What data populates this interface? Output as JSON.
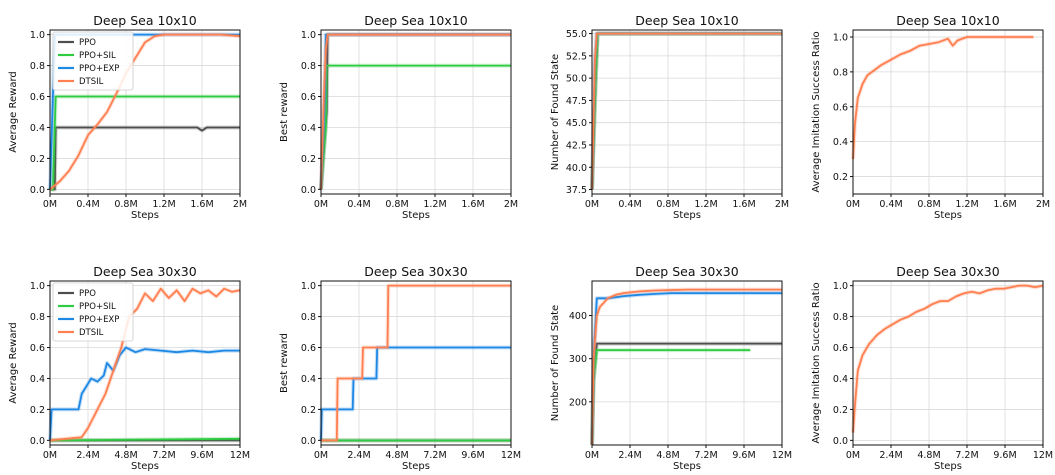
{
  "colors": {
    "PPO": "#4d4d4d",
    "PPO+SIL": "#2ecc40",
    "PPO+EXP": "#1e88e5",
    "DTSIL": "#ff7f50",
    "grid": "#d9d9d9"
  },
  "chart_data": [
    {
      "type": "line",
      "title": "Deep Sea 10x10",
      "xlabel": "Steps",
      "ylabel": "Average Reward",
      "xlim": [
        0,
        2
      ],
      "ylim": [
        -0.03,
        1.03
      ],
      "xticks": [
        0,
        0.4,
        0.8,
        1.2,
        1.6,
        2
      ],
      "xticklabels": [
        "0M",
        "0.4M",
        "0.8M",
        "1.2M",
        "1.6M",
        "2M"
      ],
      "yticks": [
        0,
        0.2,
        0.4,
        0.6,
        0.8,
        1.0
      ],
      "yticklabels": [
        "0.0",
        "0.2",
        "0.4",
        "0.6",
        "0.8",
        "1.0"
      ],
      "grid": true,
      "legend": "upper-left",
      "series": [
        {
          "name": "PPO",
          "x": [
            0,
            0.05,
            0.06,
            1.55,
            1.6,
            1.65,
            2
          ],
          "y": [
            0,
            0,
            0.4,
            0.4,
            0.38,
            0.4,
            0.4
          ]
        },
        {
          "name": "PPO+SIL",
          "x": [
            0,
            0.03,
            0.06,
            2
          ],
          "y": [
            0,
            0,
            0.6,
            0.6
          ]
        },
        {
          "name": "PPO+EXP",
          "x": [
            0,
            0.05,
            0.2,
            2
          ],
          "y": [
            0,
            1.0,
            1.0,
            1.0
          ]
        },
        {
          "name": "DTSIL",
          "x": [
            0,
            0.1,
            0.2,
            0.3,
            0.4,
            0.5,
            0.6,
            0.7,
            0.8,
            0.9,
            1.0,
            1.1,
            1.2,
            1.4,
            1.6,
            1.8,
            2.0
          ],
          "y": [
            0,
            0.05,
            0.12,
            0.22,
            0.35,
            0.42,
            0.5,
            0.62,
            0.75,
            0.85,
            0.95,
            0.99,
            1.0,
            1.0,
            1.0,
            1.0,
            0.99
          ]
        }
      ]
    },
    {
      "type": "line",
      "title": "Deep Sea 10x10",
      "xlabel": "Steps",
      "ylabel": "Best reward",
      "xlim": [
        0,
        2
      ],
      "ylim": [
        -0.03,
        1.03
      ],
      "xticks": [
        0,
        0.4,
        0.8,
        1.2,
        1.6,
        2
      ],
      "xticklabels": [
        "0M",
        "0.4M",
        "0.8M",
        "1.2M",
        "1.6M",
        "2M"
      ],
      "yticks": [
        0,
        0.2,
        0.4,
        0.6,
        0.8,
        1.0
      ],
      "yticklabels": [
        "0.0",
        "0.2",
        "0.4",
        "0.6",
        "0.8",
        "1.0"
      ],
      "grid": true,
      "series": [
        {
          "name": "PPO",
          "x": [
            0,
            0.06,
            0.07,
            2
          ],
          "y": [
            0,
            0.5,
            1.0,
            1.0
          ]
        },
        {
          "name": "PPO+SIL",
          "x": [
            0,
            0.05,
            0.06,
            2
          ],
          "y": [
            0,
            0.4,
            0.8,
            0.8
          ]
        },
        {
          "name": "PPO+EXP",
          "x": [
            0,
            0.04,
            0.05,
            2
          ],
          "y": [
            0,
            0.6,
            1.0,
            1.0
          ]
        },
        {
          "name": "DTSIL",
          "x": [
            0,
            0.03,
            0.05,
            0.07,
            2
          ],
          "y": [
            0,
            0.6,
            0.9,
            1.0,
            1.0
          ]
        }
      ]
    },
    {
      "type": "line",
      "title": "Deep Sea 10x10",
      "xlabel": "Steps",
      "ylabel": "Number of Found State",
      "xlim": [
        0,
        2
      ],
      "ylim": [
        37,
        55.4
      ],
      "xticks": [
        0,
        0.4,
        0.8,
        1.2,
        1.6,
        2
      ],
      "xticklabels": [
        "0M",
        "0.4M",
        "0.8M",
        "1.2M",
        "1.6M",
        "2M"
      ],
      "yticks": [
        37.5,
        40,
        42.5,
        45,
        47.5,
        50,
        52.5,
        55
      ],
      "yticklabels": [
        "37.5",
        "40.0",
        "42.5",
        "45.0",
        "47.5",
        "50.0",
        "52.5",
        "55.0"
      ],
      "grid": true,
      "series": [
        {
          "name": "PPO",
          "x": [
            0,
            0.04,
            0.06,
            2
          ],
          "y": [
            37.5,
            50,
            55,
            55
          ]
        },
        {
          "name": "PPO+SIL",
          "x": [
            0,
            0.04,
            0.06,
            2
          ],
          "y": [
            37.5,
            50,
            55,
            55
          ]
        },
        {
          "name": "PPO+EXP",
          "x": [
            0,
            0.03,
            0.05,
            2
          ],
          "y": [
            37.5,
            52,
            55,
            55
          ]
        },
        {
          "name": "DTSIL",
          "x": [
            0,
            0.03,
            0.05,
            2
          ],
          "y": [
            37.5,
            52,
            55,
            55
          ]
        }
      ]
    },
    {
      "type": "line",
      "title": "Deep Sea 10x10",
      "xlabel": "Steps",
      "ylabel": "Average Imitation Success Ratio",
      "xlim": [
        0,
        2
      ],
      "ylim": [
        0.1,
        1.04
      ],
      "xticks": [
        0,
        0.4,
        0.8,
        1.2,
        1.6,
        2
      ],
      "xticklabels": [
        "0M",
        "0.4M",
        "0.8M",
        "1.2M",
        "1.6M",
        "2M"
      ],
      "yticks": [
        0.2,
        0.4,
        0.6,
        0.8,
        1.0
      ],
      "yticklabels": [
        "0.2",
        "0.4",
        "0.6",
        "0.8",
        "1.0"
      ],
      "grid": true,
      "series": [
        {
          "name": "DTSIL",
          "x": [
            0,
            0.02,
            0.05,
            0.1,
            0.15,
            0.2,
            0.3,
            0.4,
            0.5,
            0.6,
            0.7,
            0.8,
            0.9,
            1.0,
            1.05,
            1.1,
            1.2,
            1.4,
            1.6,
            1.8,
            1.9
          ],
          "y": [
            0.3,
            0.5,
            0.65,
            0.73,
            0.78,
            0.8,
            0.84,
            0.87,
            0.9,
            0.92,
            0.95,
            0.96,
            0.97,
            0.99,
            0.95,
            0.98,
            1.0,
            1.0,
            1.0,
            1.0,
            1.0
          ]
        }
      ]
    },
    {
      "type": "line",
      "title": "Deep Sea 30x30",
      "xlabel": "Steps",
      "ylabel": "Average Reward",
      "xlim": [
        0,
        12
      ],
      "ylim": [
        -0.03,
        1.03
      ],
      "xticks": [
        0,
        2.4,
        4.8,
        7.2,
        9.6,
        12
      ],
      "xticklabels": [
        "0M",
        "2.4M",
        "4.8M",
        "7.2M",
        "9.6M",
        "12M"
      ],
      "yticks": [
        0,
        0.2,
        0.4,
        0.6,
        0.8,
        1.0
      ],
      "yticklabels": [
        "0.0",
        "0.2",
        "0.4",
        "0.6",
        "0.8",
        "1.0"
      ],
      "grid": true,
      "legend": "upper-left",
      "series": [
        {
          "name": "PPO",
          "x": [
            0,
            12
          ],
          "y": [
            0,
            0
          ]
        },
        {
          "name": "PPO+SIL",
          "x": [
            0,
            12
          ],
          "y": [
            0,
            0.01
          ]
        },
        {
          "name": "PPO+EXP",
          "x": [
            0,
            0.1,
            1.8,
            2.0,
            2.6,
            3.0,
            3.4,
            3.6,
            4.0,
            4.4,
            4.8,
            5.4,
            6.0,
            7.0,
            8.0,
            9.0,
            10.0,
            11.0,
            12.0
          ],
          "y": [
            0,
            0.2,
            0.2,
            0.3,
            0.4,
            0.38,
            0.42,
            0.5,
            0.45,
            0.55,
            0.6,
            0.57,
            0.59,
            0.58,
            0.57,
            0.58,
            0.57,
            0.58,
            0.58
          ]
        },
        {
          "name": "DTSIL",
          "x": [
            0,
            1.0,
            2.0,
            2.4,
            3.0,
            3.5,
            4.0,
            4.5,
            5.0,
            5.5,
            6.0,
            6.5,
            7.0,
            7.5,
            8.0,
            8.5,
            9.0,
            9.5,
            10.0,
            10.5,
            11.0,
            11.5,
            12.0
          ],
          "y": [
            0,
            0.01,
            0.02,
            0.08,
            0.2,
            0.3,
            0.45,
            0.6,
            0.8,
            0.85,
            0.95,
            0.9,
            0.98,
            0.92,
            0.97,
            0.9,
            0.98,
            0.95,
            0.97,
            0.93,
            0.98,
            0.96,
            0.97
          ]
        }
      ]
    },
    {
      "type": "line",
      "title": "Deep Sea 30x30",
      "xlabel": "Steps",
      "ylabel": "Best reward",
      "xlim": [
        0,
        12
      ],
      "ylim": [
        -0.03,
        1.03
      ],
      "xticks": [
        0,
        2.4,
        4.8,
        7.2,
        9.6,
        12
      ],
      "xticklabels": [
        "0M",
        "2.4M",
        "4.8M",
        "7.2M",
        "9.6M",
        "12M"
      ],
      "yticks": [
        0,
        0.2,
        0.4,
        0.6,
        0.8,
        1.0
      ],
      "yticklabels": [
        "0.0",
        "0.2",
        "0.4",
        "0.6",
        "0.8",
        "1.0"
      ],
      "grid": true,
      "series": [
        {
          "name": "PPO",
          "x": [
            0,
            12
          ],
          "y": [
            0,
            0
          ]
        },
        {
          "name": "PPO+SIL",
          "x": [
            0,
            12
          ],
          "y": [
            0,
            0
          ]
        },
        {
          "name": "PPO+EXP",
          "x": [
            0,
            0.05,
            2.0,
            2.05,
            3.5,
            3.55,
            4.0,
            4.05,
            12
          ],
          "y": [
            0,
            0.2,
            0.2,
            0.4,
            0.4,
            0.6,
            0.6,
            0.6,
            0.6
          ]
        },
        {
          "name": "DTSIL",
          "x": [
            0,
            1.0,
            1.05,
            2.6,
            2.65,
            4.2,
            4.25,
            12
          ],
          "y": [
            0,
            0,
            0.4,
            0.4,
            0.6,
            0.6,
            1.0,
            1.0
          ]
        }
      ]
    },
    {
      "type": "line",
      "title": "Deep Sea 30x30",
      "xlabel": "Steps",
      "ylabel": "Number of Found State",
      "xlim": [
        0,
        12
      ],
      "ylim": [
        100,
        480
      ],
      "xticks": [
        0,
        2.4,
        4.8,
        7.2,
        9.6,
        12
      ],
      "xticklabels": [
        "0M",
        "2.4M",
        "4.8M",
        "7.2M",
        "9.6M",
        "12M"
      ],
      "yticks": [
        200,
        300,
        400
      ],
      "yticklabels": [
        "200",
        "300",
        "400"
      ],
      "grid": true,
      "series": [
        {
          "name": "PPO",
          "x": [
            0,
            0.1,
            0.3,
            12
          ],
          "y": [
            100,
            250,
            335,
            335
          ]
        },
        {
          "name": "PPO+SIL",
          "x": [
            0,
            0.1,
            0.3,
            10.0
          ],
          "y": [
            100,
            250,
            320,
            320
          ]
        },
        {
          "name": "PPO+EXP",
          "x": [
            0,
            0.1,
            0.3,
            1.0,
            2.0,
            3.0,
            4.0,
            5.0,
            6.0,
            8.0,
            10.0,
            12.0
          ],
          "y": [
            100,
            300,
            440,
            440,
            445,
            448,
            450,
            452,
            452,
            452,
            452,
            452
          ]
        },
        {
          "name": "DTSIL",
          "x": [
            0,
            0.1,
            0.3,
            0.5,
            1.0,
            1.5,
            2.0,
            3.0,
            4.0,
            6.0,
            8.0,
            10.0,
            12.0
          ],
          "y": [
            100,
            300,
            400,
            420,
            440,
            448,
            452,
            456,
            458,
            460,
            460,
            460,
            460
          ]
        }
      ]
    },
    {
      "type": "line",
      "title": "Deep Sea 30x30",
      "xlabel": "Steps",
      "ylabel": "Average Imitation Success Ratio",
      "xlim": [
        0,
        12
      ],
      "ylim": [
        -0.03,
        1.03
      ],
      "xticks": [
        0,
        2.4,
        4.8,
        7.2,
        9.6,
        12
      ],
      "xticklabels": [
        "0M",
        "2.4M",
        "4.8M",
        "7.2M",
        "9.6M",
        "12M"
      ],
      "yticks": [
        0,
        0.2,
        0.4,
        0.6,
        0.8,
        1.0
      ],
      "yticklabels": [
        "0.0",
        "0.2",
        "0.4",
        "0.6",
        "0.8",
        "1.0"
      ],
      "grid": true,
      "series": [
        {
          "name": "DTSIL",
          "x": [
            0,
            0.1,
            0.3,
            0.6,
            1.0,
            1.5,
            2.0,
            2.5,
            3.0,
            3.5,
            4.0,
            4.5,
            5.0,
            5.5,
            6.0,
            6.5,
            7.0,
            7.5,
            8.0,
            8.5,
            9.0,
            9.5,
            10.0,
            10.5,
            11.0,
            11.5,
            12.0
          ],
          "y": [
            0.05,
            0.2,
            0.45,
            0.55,
            0.62,
            0.68,
            0.72,
            0.75,
            0.78,
            0.8,
            0.83,
            0.85,
            0.88,
            0.9,
            0.9,
            0.93,
            0.95,
            0.96,
            0.95,
            0.97,
            0.98,
            0.98,
            0.99,
            1.0,
            1.0,
            0.99,
            1.0
          ]
        }
      ]
    }
  ]
}
